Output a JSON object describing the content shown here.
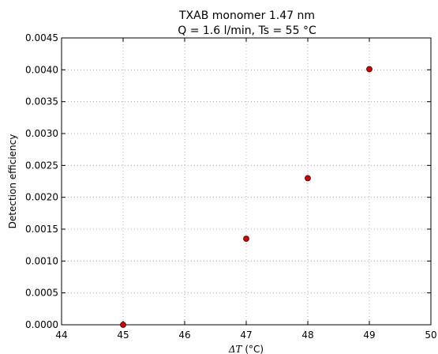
{
  "chart_data": {
    "type": "scatter",
    "title": "TXAB monomer 1.47 nm",
    "subtitle": "Q = 1.6 l/min, Ts = 55 °C",
    "xlabel_symbol": "ΔT",
    "xlabel_unit": " (°C)",
    "ylabel": "Detection efficiency",
    "xlim": [
      44,
      50
    ],
    "ylim": [
      0,
      0.0045
    ],
    "x_ticks": [
      "44",
      "45",
      "46",
      "47",
      "48",
      "49",
      "50"
    ],
    "y_ticks": [
      "0.0000",
      "0.0005",
      "0.0010",
      "0.0015",
      "0.0020",
      "0.0025",
      "0.0030",
      "0.0035",
      "0.0040",
      "0.0045"
    ],
    "grid": true,
    "series": [
      {
        "x": [
          45,
          47,
          48,
          49
        ],
        "y": [
          0.0,
          0.00135,
          0.0023,
          0.00401
        ],
        "marker": "circle",
        "color": "#cc0000",
        "edge_color": "#330000"
      }
    ]
  }
}
